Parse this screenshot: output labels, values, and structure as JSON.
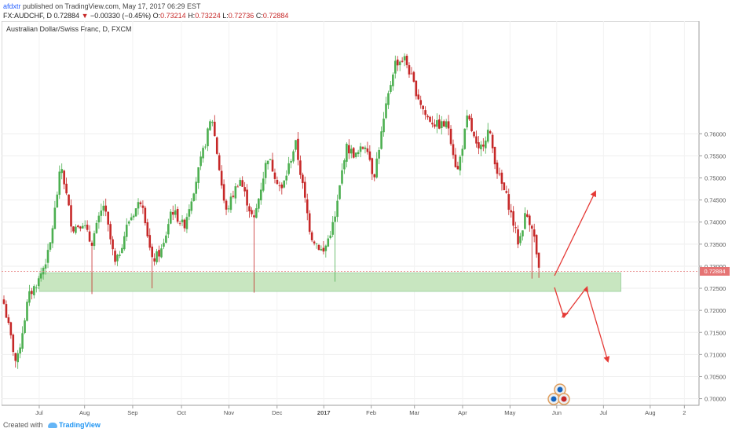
{
  "header": {
    "user": "afdxtr",
    "published_text": "published on TradingView.com, May 17, 2017 06:29 EST",
    "symbol": "FX:AUDCHF, D",
    "last": "0.72884",
    "change": "−0.00330 (−0.45%)",
    "o_label": "O:",
    "o_value": "0.73214",
    "h_label": "H:",
    "h_value": "0.73224",
    "l_label": "L:",
    "l_value": "0.72736",
    "c_label": "C:",
    "c_value": "0.72884"
  },
  "footer": {
    "created_with": "Created with",
    "brand": "TradingView"
  },
  "colors": {
    "up": "#4caf50",
    "down": "#c62828",
    "zone": "#c8e6c0",
    "arrow": "#e53935",
    "price_line": "#e57373"
  },
  "chart_data": {
    "type": "candlestick",
    "title": "Australian Dollar/Swiss Franc, D, FXCM",
    "ylim": [
      0.6985,
      0.7855
    ],
    "y_ticks": [
      "0.76000",
      "0.75500",
      "0.75000",
      "0.74500",
      "0.74000",
      "0.73500",
      "0.73000",
      "0.72500",
      "0.72000",
      "0.71500",
      "0.71000",
      "0.70500",
      "0.70000"
    ],
    "x_ticks": [
      {
        "label": "Jul",
        "pos": 0.054
      },
      {
        "label": "Aug",
        "pos": 0.119
      },
      {
        "label": "Sep",
        "pos": 0.188
      },
      {
        "label": "Oct",
        "pos": 0.258
      },
      {
        "label": "Nov",
        "pos": 0.326
      },
      {
        "label": "Dec",
        "pos": 0.395
      },
      {
        "label": "2017",
        "pos": 0.462
      },
      {
        "label": "Feb",
        "pos": 0.53
      },
      {
        "label": "Mar",
        "pos": 0.592
      },
      {
        "label": "Apr",
        "pos": 0.661
      },
      {
        "label": "May",
        "pos": 0.729
      },
      {
        "label": "Jun",
        "pos": 0.796
      },
      {
        "label": "Jul",
        "pos": 0.863
      },
      {
        "label": "Aug",
        "pos": 0.93
      },
      {
        "label": "2",
        "pos": 0.979
      }
    ],
    "last_price": 0.72884,
    "last_price_label": "0.72884",
    "support_zone": {
      "x_start": 0.054,
      "x_end": 0.888,
      "y_low": 0.7243,
      "y_high": 0.7285
    },
    "anchors": [
      [
        0.0,
        0.7215
      ],
      [
        0.018,
        0.7075
      ],
      [
        0.035,
        0.723
      ],
      [
        0.05,
        0.727
      ],
      [
        0.065,
        0.7335
      ],
      [
        0.082,
        0.753
      ],
      [
        0.098,
        0.7385
      ],
      [
        0.113,
        0.74
      ],
      [
        0.125,
        0.735
      ],
      [
        0.143,
        0.744
      ],
      [
        0.16,
        0.73
      ],
      [
        0.178,
        0.74
      ],
      [
        0.198,
        0.7455
      ],
      [
        0.212,
        0.731
      ],
      [
        0.228,
        0.734
      ],
      [
        0.24,
        0.743
      ],
      [
        0.258,
        0.739
      ],
      [
        0.278,
        0.751
      ],
      [
        0.298,
        0.764
      ],
      [
        0.318,
        0.742
      ],
      [
        0.338,
        0.75
      ],
      [
        0.358,
        0.74
      ],
      [
        0.378,
        0.755
      ],
      [
        0.398,
        0.747
      ],
      [
        0.418,
        0.758
      ],
      [
        0.44,
        0.737
      ],
      [
        0.458,
        0.733
      ],
      [
        0.475,
        0.741
      ],
      [
        0.49,
        0.757
      ],
      [
        0.505,
        0.755
      ],
      [
        0.52,
        0.758
      ],
      [
        0.53,
        0.75
      ],
      [
        0.548,
        0.766
      ],
      [
        0.56,
        0.776
      ],
      [
        0.575,
        0.777
      ],
      [
        0.59,
        0.77
      ],
      [
        0.605,
        0.764
      ],
      [
        0.62,
        0.762
      ],
      [
        0.637,
        0.762
      ],
      [
        0.65,
        0.751
      ],
      [
        0.665,
        0.764
      ],
      [
        0.68,
        0.7555
      ],
      [
        0.695,
        0.761
      ],
      [
        0.708,
        0.751
      ],
      [
        0.722,
        0.745
      ],
      [
        0.738,
        0.735
      ],
      [
        0.748,
        0.742
      ],
      [
        0.758,
        0.739
      ],
      [
        0.767,
        0.7288
      ]
    ]
  }
}
